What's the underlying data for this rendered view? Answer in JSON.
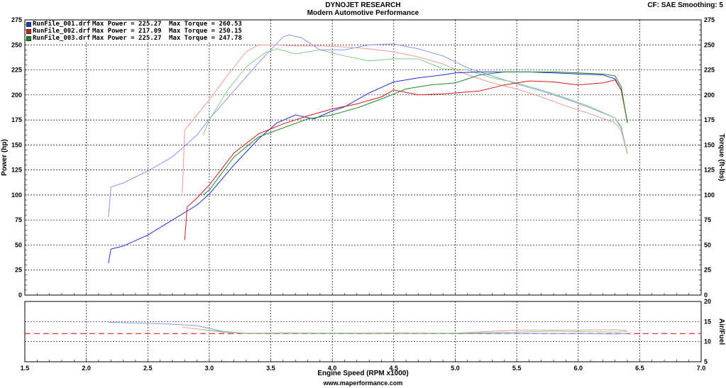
{
  "header": {
    "brand": "DYNOJET RESEARCH",
    "subtitle": "Modern Automotive Performance",
    "correction": "CF: SAE  Smoothing: 5"
  },
  "footer": {
    "website": "www.maperformance.com"
  },
  "chart_data": [
    {
      "type": "line",
      "xlabel": "Engine Speed (RPM x1000)",
      "ylabel": "Power (hp)",
      "y2label": "Torque (ft-lbs)",
      "xlim": [
        1.5,
        7.0
      ],
      "ylim": [
        0,
        275
      ],
      "y2lim": [
        0,
        275
      ],
      "grid": true,
      "legend_position": "top-left",
      "x_ticks": [
        "1.5",
        "2.0",
        "2.5",
        "3.0",
        "3.5",
        "4.0",
        "4.5",
        "5.0",
        "5.5",
        "6.0",
        "6.5",
        "7.0"
      ],
      "y_ticks": [
        "0",
        "25",
        "50",
        "75",
        "100",
        "125",
        "150",
        "175",
        "200",
        "225",
        "250",
        "275"
      ],
      "y2_ticks": [
        "0",
        "25",
        "50",
        "75",
        "100",
        "125",
        "150",
        "175",
        "200",
        "225",
        "250",
        "275"
      ],
      "legend": [
        {
          "file": "RunFile_001.drf",
          "max_power": "Max Power = 225.27",
          "max_torque": "Max Torque = 260.53",
          "color": "#1f2fd6"
        },
        {
          "file": "RunFile_002.drf",
          "max_power": "Max Power = 217.09",
          "max_torque": "Max Torque = 250.15",
          "color": "#d81818"
        },
        {
          "file": "RunFile_003.drf",
          "max_power": "Max Power = 225.27",
          "max_torque": "Max Torque = 247.78",
          "color": "#1f8a2a"
        }
      ],
      "series": [
        {
          "run": "RunFile_001.drf",
          "measure": "power",
          "color": "#1f2fd6",
          "x": [
            2.18,
            2.2,
            2.3,
            2.5,
            2.7,
            2.9,
            3.0,
            3.2,
            3.4,
            3.55,
            3.7,
            3.85,
            4.0,
            4.1,
            4.3,
            4.5,
            4.7,
            4.9,
            5.0,
            5.2,
            5.4,
            5.6,
            5.8,
            6.0,
            6.2,
            6.3,
            6.35,
            6.4
          ],
          "y": [
            32,
            46,
            49,
            60,
            75,
            90,
            101,
            130,
            156,
            172,
            180,
            176,
            184,
            188,
            202,
            213,
            217,
            220,
            222,
            223,
            223,
            223,
            222,
            221,
            220,
            216,
            205,
            173
          ]
        },
        {
          "run": "RunFile_002.drf",
          "measure": "power",
          "color": "#d81818",
          "x": [
            2.8,
            2.82,
            2.9,
            3.0,
            3.2,
            3.4,
            3.6,
            3.8,
            4.0,
            4.2,
            4.4,
            4.5,
            4.7,
            4.9,
            5.0,
            5.2,
            5.4,
            5.6,
            5.8,
            6.0,
            6.2,
            6.3,
            6.35,
            6.4
          ],
          "y": [
            55,
            88,
            97,
            110,
            142,
            161,
            171,
            179,
            186,
            191,
            198,
            205,
            200,
            201,
            202,
            204,
            210,
            214,
            213,
            210,
            212,
            215,
            205,
            172
          ]
        },
        {
          "run": "RunFile_003.drf",
          "measure": "power",
          "color": "#1f8a2a",
          "x": [
            2.95,
            3.0,
            3.2,
            3.4,
            3.6,
            3.8,
            4.0,
            4.2,
            4.4,
            4.6,
            4.8,
            5.0,
            5.2,
            5.4,
            5.6,
            5.8,
            6.0,
            6.2,
            6.3,
            6.35,
            6.4
          ],
          "y": [
            100,
            105,
            138,
            158,
            167,
            176,
            180,
            187,
            196,
            206,
            210,
            212,
            220,
            223,
            223,
            223,
            222,
            221,
            219,
            208,
            172
          ]
        },
        {
          "run": "RunFile_001.drf",
          "measure": "torque",
          "color": "#8a93f0",
          "x": [
            2.18,
            2.2,
            2.3,
            2.5,
            2.7,
            2.9,
            3.0,
            3.2,
            3.4,
            3.5,
            3.6,
            3.65,
            3.75,
            3.9,
            4.1,
            4.3,
            4.5,
            4.7,
            4.9,
            5.1,
            5.3,
            5.5,
            5.7,
            5.9,
            6.1,
            6.3,
            6.35,
            6.4
          ],
          "y": [
            78,
            108,
            112,
            124,
            138,
            160,
            176,
            204,
            232,
            245,
            258,
            260,
            257,
            245,
            245,
            250,
            251,
            246,
            239,
            227,
            219,
            211,
            204,
            196,
            187,
            177,
            168,
            141
          ]
        },
        {
          "run": "RunFile_002.drf",
          "measure": "torque",
          "color": "#f09a96",
          "x": [
            2.78,
            2.8,
            2.9,
            3.0,
            3.15,
            3.3,
            3.4,
            3.55,
            3.7,
            3.9,
            4.1,
            4.3,
            4.5,
            4.7,
            4.9,
            5.1,
            5.3,
            5.5,
            5.7,
            5.9,
            6.1,
            6.3,
            6.35,
            6.4
          ],
          "y": [
            102,
            165,
            180,
            195,
            220,
            243,
            250,
            250,
            249,
            249,
            248,
            246,
            243,
            238,
            231,
            220,
            212,
            206,
            198,
            189,
            181,
            172,
            164,
            141
          ]
        },
        {
          "run": "RunFile_003.drf",
          "measure": "torque",
          "color": "#7ecf86",
          "x": [
            2.95,
            3.0,
            3.15,
            3.3,
            3.45,
            3.55,
            3.7,
            3.9,
            4.1,
            4.3,
            4.5,
            4.7,
            4.9,
            5.1,
            5.3,
            5.5,
            5.7,
            5.9,
            6.1,
            6.3,
            6.35,
            6.4
          ],
          "y": [
            160,
            175,
            205,
            228,
            242,
            246,
            241,
            245,
            239,
            234,
            236,
            236,
            226,
            225,
            217,
            212,
            205,
            197,
            188,
            177,
            166,
            142
          ]
        }
      ]
    },
    {
      "type": "line",
      "ylabel": "Air/Fuel",
      "xlim": [
        1.5,
        7.0
      ],
      "ylim": [
        5,
        20
      ],
      "grid": true,
      "y_ticks": [
        "5",
        "10",
        "15",
        "20"
      ],
      "reference_line": {
        "y": 12,
        "color": "#e02020",
        "style": "dashed"
      },
      "series": [
        {
          "run": "RunFile_001.drf",
          "color": "#8a93f0",
          "x": [
            2.18,
            2.6,
            2.9,
            3.1,
            3.3,
            3.6,
            4.0,
            4.5,
            5.0,
            5.5,
            6.0,
            6.3,
            6.4
          ],
          "y": [
            14.8,
            14.5,
            14.0,
            12.6,
            12.0,
            12.1,
            12.0,
            12.1,
            12.0,
            12.0,
            12.0,
            11.9,
            12.0
          ]
        },
        {
          "run": "RunFile_002.drf",
          "color": "#f09a96",
          "x": [
            2.78,
            2.95,
            3.1,
            3.3,
            3.6,
            4.0,
            4.5,
            5.0,
            5.5,
            6.0,
            6.3,
            6.4
          ],
          "y": [
            13.6,
            13.0,
            12.4,
            12.0,
            12.1,
            12.1,
            12.0,
            12.1,
            12.9,
            12.9,
            13.0,
            12.8
          ]
        },
        {
          "run": "RunFile_003.drf",
          "color": "#7ecf86",
          "x": [
            2.95,
            3.1,
            3.3,
            3.6,
            4.0,
            4.5,
            5.0,
            5.4,
            5.8,
            6.0,
            6.3,
            6.4
          ],
          "y": [
            13.0,
            12.5,
            12.1,
            12.2,
            12.1,
            12.2,
            12.1,
            12.3,
            12.6,
            12.5,
            12.4,
            12.5
          ]
        }
      ]
    }
  ]
}
